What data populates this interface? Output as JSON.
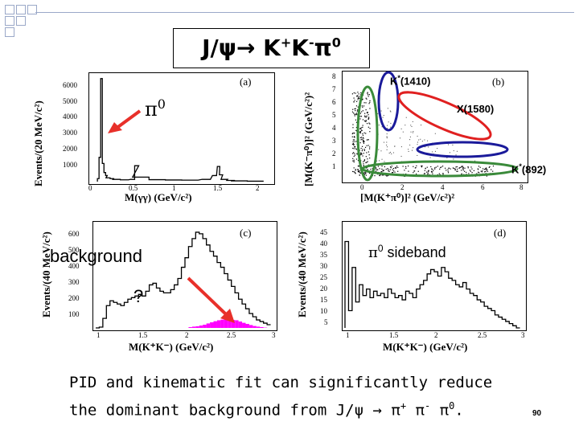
{
  "slide": {
    "title_main": "J/ψ→ K",
    "title_sup1": "+",
    "title_mid": "K",
    "title_sup2": "-",
    "title_end": "π",
    "title_sup3": "0",
    "page_number": "90",
    "caption_line1": "PID and kinematic fit can significantly reduce",
    "caption_line2_a": "the dominant background from J/ψ → π",
    "caption_sup_plus": "+",
    "caption_mid": " π",
    "caption_sup_minus": "-",
    "caption_end": " π",
    "caption_sup_zero": "0",
    "caption_period": ".",
    "colors": {
      "arrow": "#e8302a",
      "highlight": "#ff00ff",
      "ellipse_blue": "#1a1a9a",
      "ellipse_red": "#e02020",
      "ellipse_green": "#3a8a3a"
    }
  },
  "panels": {
    "a": {
      "label": "(a)",
      "ylabel": "Events/(20 MeV/c²)",
      "xlabel": "M(γγ) (GeV/c²)",
      "yticks": [
        "6000",
        "5000",
        "4000",
        "3000",
        "2000",
        "1000"
      ],
      "xticks": [
        "0",
        "0.5",
        "1",
        "1.5",
        "2"
      ],
      "annotation": "π",
      "annotation_sup": "0"
    },
    "b": {
      "label": "(b)",
      "ylabel": "[M(K⁻π⁰)]² (GeV/c²)²",
      "xlabel": "[M(K⁺π⁰)]² (GeV/c²)²",
      "yticks": [
        "8",
        "7",
        "6",
        "5",
        "4",
        "3",
        "2",
        "1"
      ],
      "xticks": [
        "0",
        "2",
        "4",
        "6",
        "8"
      ],
      "annotation_k1410": "K",
      "annotation_k1410_sup": "*",
      "annotation_k1410_rest": "(1410)",
      "annotation_x1580": "X(1580)",
      "annotation_k892": "K",
      "annotation_k892_sup": "*",
      "annotation_k892_rest": "(892)"
    },
    "c": {
      "label": "(c)",
      "ylabel": "Events/(40 MeV/c²)",
      "xlabel": "M(K⁺K⁻) (GeV/c²)",
      "yticks": [
        "600",
        "500",
        "400",
        "300",
        "200",
        "100"
      ],
      "xticks": [
        "1",
        "1.5",
        "2",
        "2.5",
        "3"
      ],
      "annotation_bg": "background",
      "annotation_q": "?"
    },
    "d": {
      "label": "(d)",
      "ylabel": "Events/(40 MeV/c²)",
      "xlabel": "M(K⁺K⁻) (GeV/c²)",
      "yticks": [
        "45",
        "40",
        "35",
        "30",
        "25",
        "20",
        "15",
        "10",
        "5"
      ],
      "xticks": [
        "1",
        "1.5",
        "2",
        "2.5",
        "3"
      ],
      "annotation": "π",
      "annotation_sup": "0",
      "annotation_rest": " sideband"
    }
  },
  "chart_data": [
    {
      "type": "bar",
      "panel": "a",
      "xlabel": "M(γγ) (GeV/c²)",
      "ylabel": "Events/(20 MeV/c²)",
      "xlim": [
        0,
        2.2
      ],
      "ylim": [
        0,
        7000
      ],
      "x": [
        0.08,
        0.1,
        0.12,
        0.14,
        0.16,
        0.18,
        0.2,
        0.25,
        0.3,
        0.4,
        0.5,
        0.55,
        0.6,
        0.8,
        1.0,
        1.2,
        1.4,
        1.5,
        1.55,
        1.58,
        1.62,
        1.7,
        1.8,
        2.0
      ],
      "values": [
        200,
        1600,
        6800,
        1200,
        600,
        400,
        250,
        200,
        150,
        120,
        150,
        1050,
        300,
        130,
        110,
        100,
        150,
        400,
        1000,
        450,
        150,
        80,
        50,
        30
      ]
    },
    {
      "type": "scatter",
      "panel": "b",
      "xlabel": "[M(K⁺π⁰)]² (GeV/c²)²",
      "ylabel": "[M(K⁻π⁰)]² (GeV/c²)²",
      "xlim": [
        0,
        9
      ],
      "ylim": [
        0,
        9
      ],
      "bands": [
        {
          "name": "K*(892) vertical",
          "x": 0.8,
          "y_range": [
            0.6,
            7.5
          ]
        },
        {
          "name": "K*(892) horizontal",
          "y": 0.8,
          "x_range": [
            0.6,
            7.5
          ]
        }
      ]
    },
    {
      "type": "bar",
      "panel": "c",
      "xlabel": "M(K⁺K⁻) (GeV/c²)",
      "ylabel": "Events/(40 MeV/c²)",
      "xlim": [
        1,
        3
      ],
      "ylim": [
        0,
        650
      ],
      "x": [
        1.02,
        1.06,
        1.1,
        1.14,
        1.18,
        1.22,
        1.26,
        1.3,
        1.34,
        1.38,
        1.42,
        1.46,
        1.5,
        1.54,
        1.58,
        1.62,
        1.66,
        1.7,
        1.74,
        1.78,
        1.82,
        1.86,
        1.9,
        1.94,
        1.98,
        2.02,
        2.06,
        2.1,
        2.14,
        2.18,
        2.22,
        2.26,
        2.3,
        2.34,
        2.38,
        2.42,
        2.46,
        2.5,
        2.54,
        2.58,
        2.62,
        2.66,
        2.7,
        2.74,
        2.78,
        2.82,
        2.86,
        2.9,
        2.94
      ],
      "series": [
        {
          "name": "",
          "values": [
            0,
            5,
            60,
            140,
            170,
            160,
            150,
            140,
            160,
            180,
            190,
            200,
            210,
            200,
            230,
            270,
            280,
            250,
            230,
            220,
            220,
            240,
            270,
            310,
            380,
            440,
            510,
            560,
            600,
            590,
            560,
            520,
            480,
            450,
            410,
            380,
            340,
            300,
            260,
            220,
            180,
            150,
            120,
            90,
            70,
            50,
            40,
            30,
            20
          ]
        },
        {
          "name": "",
          "values": [
            0,
            0,
            0,
            0,
            0,
            0,
            0,
            0,
            0,
            0,
            0,
            0,
            0,
            0,
            0,
            0,
            0,
            0,
            0,
            0,
            0,
            0,
            0,
            0,
            0,
            0,
            5,
            8,
            10,
            15,
            20,
            28,
            35,
            42,
            48,
            52,
            55,
            55,
            50,
            48,
            40,
            32,
            25,
            18,
            12,
            8,
            5,
            2,
            0
          ]
        }
      ]
    },
    {
      "type": "bar",
      "panel": "d",
      "xlabel": "M(K⁺K⁻) (GeV/c²)",
      "ylabel": "Events/(40 MeV/c²)",
      "xlim": [
        1,
        3
      ],
      "ylim": [
        0,
        48
      ],
      "x": [
        1.02,
        1.06,
        1.1,
        1.14,
        1.18,
        1.22,
        1.26,
        1.3,
        1.34,
        1.38,
        1.42,
        1.46,
        1.5,
        1.54,
        1.58,
        1.62,
        1.66,
        1.7,
        1.74,
        1.78,
        1.82,
        1.86,
        1.9,
        1.94,
        1.98,
        2.02,
        2.06,
        2.1,
        2.14,
        2.18,
        2.22,
        2.26,
        2.3,
        2.34,
        2.38,
        2.42,
        2.46,
        2.5,
        2.54,
        2.58,
        2.62,
        2.66,
        2.7,
        2.74,
        2.78,
        2.82,
        2.86,
        2.9,
        2.94
      ],
      "values": [
        40,
        8,
        28,
        12,
        20,
        15,
        18,
        14,
        17,
        15,
        16,
        14,
        18,
        16,
        14,
        15,
        13,
        17,
        16,
        14,
        18,
        20,
        22,
        25,
        27,
        26,
        24,
        28,
        26,
        23,
        22,
        20,
        19,
        21,
        18,
        16,
        15,
        13,
        12,
        10,
        9,
        8,
        6,
        5,
        4,
        3,
        2,
        1,
        0
      ]
    }
  ]
}
